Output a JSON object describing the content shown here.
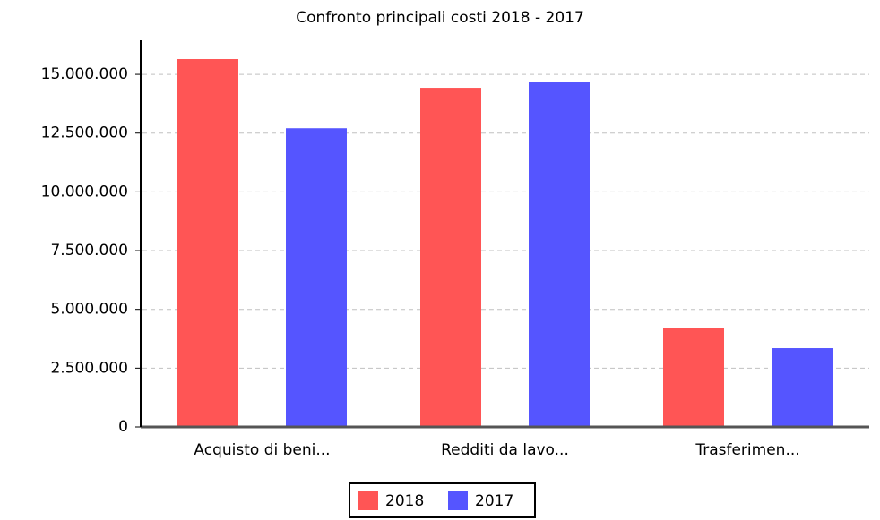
{
  "chart_data": {
    "type": "bar",
    "title": "Confronto principali costi 2018 - 2017",
    "categories": [
      "Acquisto di beni...",
      "Redditi da lavo...",
      "Trasferimen..."
    ],
    "series": [
      {
        "name": "2018",
        "color": "#ff5555",
        "values": [
          15650000,
          14430000,
          4190000
        ]
      },
      {
        "name": "2017",
        "color": "#5555ff",
        "values": [
          12710000,
          14660000,
          3350000
        ]
      }
    ],
    "ylim": [
      0,
      16450000
    ],
    "yticks": [
      0,
      {
        "value": 2500000,
        "label": "2.500.000"
      },
      {
        "value": 5000000,
        "label": "5.000.000"
      },
      {
        "value": 7500000,
        "label": "7.500.000"
      },
      {
        "value": 10000000,
        "label": "10.000.000"
      },
      {
        "value": 12500000,
        "label": "12.500.000"
      },
      {
        "value": 15000000,
        "label": "15.000.000"
      }
    ],
    "grid": true,
    "legend": "bottom"
  }
}
